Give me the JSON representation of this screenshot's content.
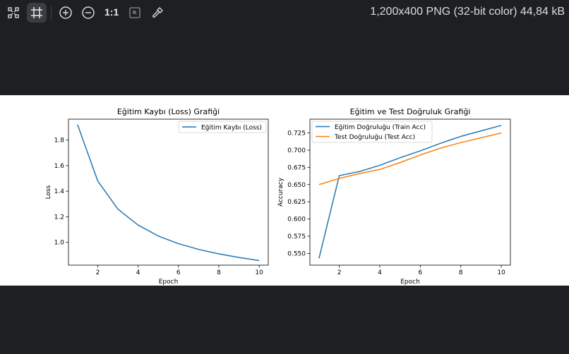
{
  "toolbar": {
    "zoom_actual_label": "1:1",
    "image_info": "1,200x400 PNG (32-bit color) 44,84 kB",
    "icons": [
      "collapse-icon",
      "crop-icon",
      "zoom-in-icon",
      "zoom-out-icon",
      "fit-window-icon",
      "color-picker-icon"
    ]
  },
  "colors": {
    "background": "#1e1f22",
    "series_blue": "#1f77b4",
    "series_orange": "#ff7f0e"
  },
  "chart_data": [
    {
      "type": "line",
      "title": "Eğitim Kaybı (Loss) Grafiği",
      "xlabel": "Epoch",
      "ylabel": "Loss",
      "x": [
        1,
        2,
        3,
        4,
        5,
        6,
        7,
        8,
        9,
        10
      ],
      "series": [
        {
          "name": "Eğitim Kaybı (Loss)",
          "color": "#1f77b4",
          "values": [
            1.92,
            1.48,
            1.26,
            1.135,
            1.05,
            0.99,
            0.945,
            0.91,
            0.882,
            0.858
          ]
        }
      ],
      "xlim": [
        0.55,
        10.45
      ],
      "ylim": [
        0.822,
        1.963
      ],
      "xticks": [
        2,
        4,
        6,
        8,
        10
      ],
      "yticks": [
        1.0,
        1.2,
        1.4,
        1.6,
        1.8
      ],
      "ytick_labels": [
        "1.0",
        "1.2",
        "1.4",
        "1.6",
        "1.8"
      ],
      "legend": "upper right",
      "grid": false
    },
    {
      "type": "line",
      "title": "Eğitim ve Test Doğruluk Grafiği",
      "xlabel": "Epoch",
      "ylabel": "Accuracy",
      "x": [
        1,
        2,
        3,
        4,
        5,
        6,
        7,
        8,
        9,
        10
      ],
      "series": [
        {
          "name": "Eğitim Doğruluğu (Train Acc)",
          "color": "#1f77b4",
          "values": [
            0.543,
            0.663,
            0.669,
            0.678,
            0.689,
            0.699,
            0.71,
            0.72,
            0.728,
            0.736
          ]
        },
        {
          "name": "Test Doğruluğu (Test Acc)",
          "color": "#ff7f0e",
          "values": [
            0.65,
            0.659,
            0.666,
            0.672,
            0.682,
            0.693,
            0.703,
            0.711,
            0.718,
            0.725
          ]
        }
      ],
      "xlim": [
        0.55,
        10.45
      ],
      "ylim": [
        0.533,
        0.745
      ],
      "xticks": [
        2,
        4,
        6,
        8,
        10
      ],
      "yticks": [
        0.55,
        0.575,
        0.6,
        0.625,
        0.65,
        0.675,
        0.7,
        0.725
      ],
      "ytick_labels": [
        "0.550",
        "0.575",
        "0.600",
        "0.625",
        "0.650",
        "0.675",
        "0.700",
        "0.725"
      ],
      "legend": "upper left",
      "grid": false
    }
  ]
}
